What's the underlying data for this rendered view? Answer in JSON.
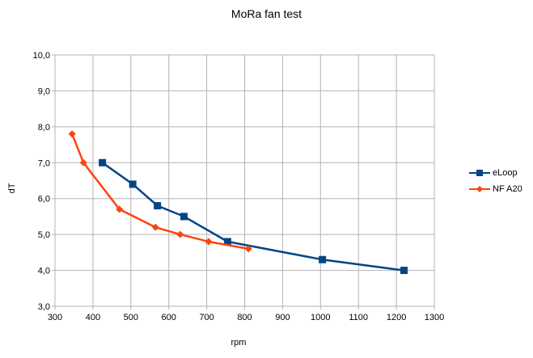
{
  "chart_data": {
    "type": "line",
    "title": "MoRa fan test",
    "xlabel": "rpm",
    "ylabel": "dT",
    "xlim": [
      300,
      1300
    ],
    "ylim": [
      3,
      10
    ],
    "x_ticks": [
      "300",
      "400",
      "500",
      "600",
      "700",
      "800",
      "900",
      "1000",
      "1100",
      "1200",
      "1300"
    ],
    "y_ticks": [
      "3,0",
      "4,0",
      "5,0",
      "6,0",
      "7,0",
      "8,0",
      "9,0",
      "10,0"
    ],
    "grid": true,
    "legend_position": "right",
    "series": [
      {
        "name": "eLoop",
        "color": "#004586",
        "marker": "square",
        "points": [
          {
            "x": 425,
            "y": 7.0
          },
          {
            "x": 505,
            "y": 6.4
          },
          {
            "x": 570,
            "y": 5.8
          },
          {
            "x": 640,
            "y": 5.5
          },
          {
            "x": 755,
            "y": 4.8
          },
          {
            "x": 1005,
            "y": 4.3
          },
          {
            "x": 1220,
            "y": 4.0
          }
        ]
      },
      {
        "name": "NF A20",
        "color": "#ff420e",
        "marker": "diamond",
        "points": [
          {
            "x": 345,
            "y": 7.8
          },
          {
            "x": 375,
            "y": 7.0
          },
          {
            "x": 470,
            "y": 5.7
          },
          {
            "x": 565,
            "y": 5.2
          },
          {
            "x": 630,
            "y": 5.0
          },
          {
            "x": 705,
            "y": 4.8
          },
          {
            "x": 810,
            "y": 4.6
          }
        ]
      }
    ]
  }
}
